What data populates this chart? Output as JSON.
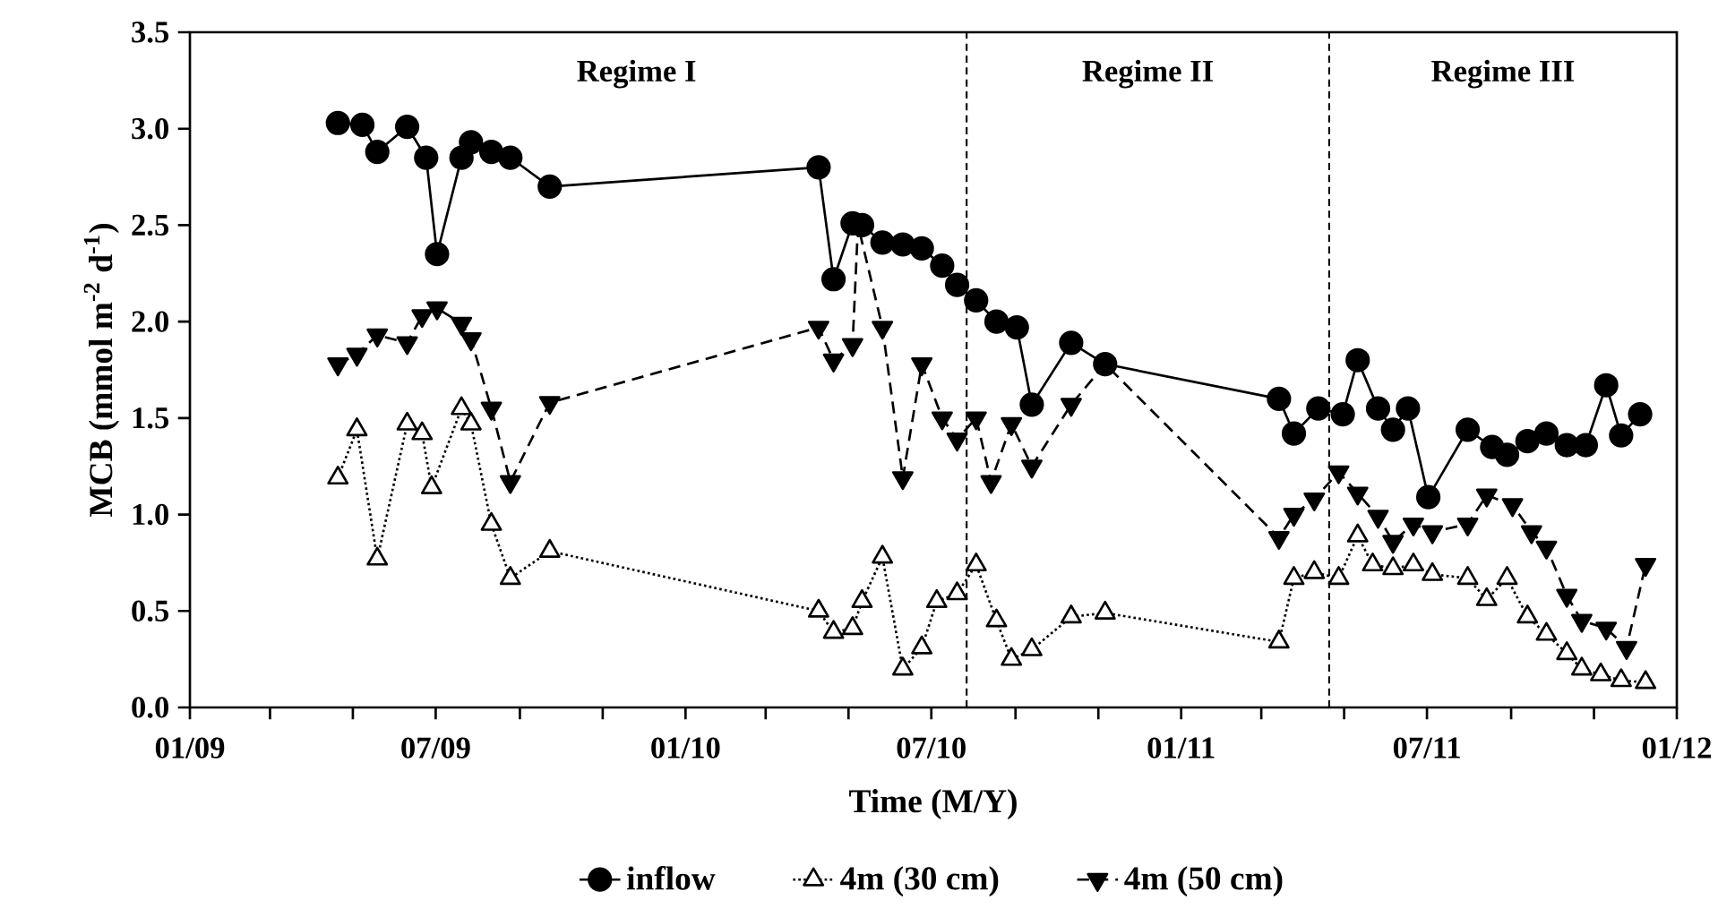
{
  "chart_data": {
    "type": "line",
    "xlabel": "Time (M/Y)",
    "ylabel": "MCB (mmol m$^{-2}$ d$^{-1}$)",
    "xlim": [
      "2009-01-01",
      "2012-01-01"
    ],
    "ylim": [
      0,
      3.5
    ],
    "xticks": [
      {
        "value": "2009-01-01",
        "label": "01/09"
      },
      {
        "value": "2009-03-01",
        "label": null
      },
      {
        "value": "2009-05-01",
        "label": null
      },
      {
        "value": "2009-07-01",
        "label": "07/09"
      },
      {
        "value": "2009-09-01",
        "label": null
      },
      {
        "value": "2009-11-01",
        "label": null
      },
      {
        "value": "2010-01-01",
        "label": "01/10"
      },
      {
        "value": "2010-03-01",
        "label": null
      },
      {
        "value": "2010-05-01",
        "label": null
      },
      {
        "value": "2010-07-01",
        "label": "07/10"
      },
      {
        "value": "2010-09-01",
        "label": null
      },
      {
        "value": "2010-11-01",
        "label": null
      },
      {
        "value": "2011-01-01",
        "label": "01/11"
      },
      {
        "value": "2011-03-01",
        "label": null
      },
      {
        "value": "2011-05-01",
        "label": null
      },
      {
        "value": "2011-07-01",
        "label": "07/11"
      },
      {
        "value": "2011-09-01",
        "label": null
      },
      {
        "value": "2011-11-01",
        "label": null
      },
      {
        "value": "2012-01-01",
        "label": "01/12"
      }
    ],
    "yticks": [
      {
        "value": 0,
        "label": "0.0"
      },
      {
        "value": 0.5,
        "label": "0.5"
      },
      {
        "value": 1,
        "label": "1.0"
      },
      {
        "value": 1.5,
        "label": "1.5"
      },
      {
        "value": 2,
        "label": "2.0"
      },
      {
        "value": 2.5,
        "label": "2.5"
      },
      {
        "value": 3,
        "label": "3.0"
      },
      {
        "value": 3.5,
        "label": "3.5"
      }
    ],
    "legend": "bottom",
    "series": [
      {
        "name": "inflow",
        "color": "#000000",
        "marker": "circle",
        "line_style": "solid",
        "x": [
          "2009-04-20",
          "2009-05-08",
          "2009-05-19",
          "2009-06-10",
          "2009-06-24",
          "2009-07-02",
          "2009-07-20",
          "2009-07-27",
          "2009-08-11",
          "2009-08-25",
          "2009-09-23",
          "2010-04-09",
          "2010-04-20",
          "2010-05-04",
          "2010-05-11",
          "2010-05-26",
          "2010-06-10",
          "2010-06-24",
          "2010-07-09",
          "2010-07-20",
          "2010-08-03",
          "2010-08-18",
          "2010-09-02",
          "2010-09-13",
          "2010-10-12",
          "2010-11-06",
          "2011-03-14",
          "2011-03-25",
          "2011-04-12",
          "2011-04-30",
          "2011-05-11",
          "2011-05-26",
          "2011-06-06",
          "2011-06-17",
          "2011-07-02",
          "2011-07-31",
          "2011-08-18",
          "2011-08-29",
          "2011-09-13",
          "2011-09-27",
          "2011-10-12",
          "2011-10-26",
          "2011-11-10",
          "2011-11-21",
          "2011-12-05"
        ],
        "values": [
          3.03,
          3.02,
          2.88,
          3.01,
          2.85,
          2.35,
          2.85,
          2.93,
          2.88,
          2.85,
          2.7,
          2.8,
          2.22,
          2.51,
          2.5,
          2.41,
          2.4,
          2.38,
          2.29,
          2.19,
          2.11,
          2.0,
          1.97,
          1.57,
          1.89,
          1.78,
          1.6,
          1.42,
          1.55,
          1.52,
          1.8,
          1.55,
          1.44,
          1.55,
          1.09,
          1.44,
          1.35,
          1.31,
          1.38,
          1.42,
          1.36,
          1.36,
          1.67,
          1.41,
          1.52
        ]
      },
      {
        "name": "4m (30 cm)",
        "color": "#000000",
        "marker": "triangle",
        "line_style": "dotted",
        "x": [
          "2009-04-20",
          "2009-05-04",
          "2009-05-19",
          "2009-06-10",
          "2009-06-21",
          "2009-06-28",
          "2009-07-20",
          "2009-07-27",
          "2009-08-11",
          "2009-08-25",
          "2009-09-23",
          "2010-04-09",
          "2010-04-20",
          "2010-05-04",
          "2010-05-11",
          "2010-05-26",
          "2010-06-10",
          "2010-06-24",
          "2010-07-05",
          "2010-07-20",
          "2010-08-03",
          "2010-08-18",
          "2010-08-29",
          "2010-09-13",
          "2010-10-12",
          "2010-11-06",
          "2011-03-14",
          "2011-03-25",
          "2011-04-09",
          "2011-04-27",
          "2011-05-11",
          "2011-05-22",
          "2011-06-06",
          "2011-06-21",
          "2011-07-05",
          "2011-07-31",
          "2011-08-14",
          "2011-08-29",
          "2011-09-13",
          "2011-09-27",
          "2011-10-12",
          "2011-10-23",
          "2011-11-06",
          "2011-11-21",
          "2011-12-09"
        ],
        "values": [
          1.19,
          1.44,
          0.77,
          1.47,
          1.42,
          1.14,
          1.55,
          1.47,
          0.95,
          0.67,
          0.81,
          0.5,
          0.39,
          0.41,
          0.55,
          0.78,
          0.2,
          0.31,
          0.55,
          0.59,
          0.74,
          0.45,
          0.25,
          0.3,
          0.47,
          0.49,
          0.34,
          0.67,
          0.7,
          0.67,
          0.89,
          0.74,
          0.72,
          0.74,
          0.69,
          0.67,
          0.56,
          0.67,
          0.47,
          0.38,
          0.28,
          0.2,
          0.17,
          0.14,
          0.13
        ]
      },
      {
        "name": "4m (50 cm)",
        "color": "#000000",
        "marker": "triangle-down",
        "line_style": "dashed",
        "x": [
          "2009-04-20",
          "2009-05-04",
          "2009-05-19",
          "2009-06-10",
          "2009-06-21",
          "2009-07-02",
          "2009-07-20",
          "2009-07-27",
          "2009-08-11",
          "2009-08-25",
          "2009-09-23",
          "2010-04-09",
          "2010-04-20",
          "2010-05-04",
          "2010-05-08",
          "2010-05-26",
          "2010-06-10",
          "2010-06-24",
          "2010-07-09",
          "2010-07-20",
          "2010-08-03",
          "2010-08-14",
          "2010-08-29",
          "2010-09-13",
          "2010-10-12",
          "2010-11-06",
          "2011-03-14",
          "2011-03-25",
          "2011-04-09",
          "2011-04-27",
          "2011-05-11",
          "2011-05-26",
          "2011-06-06",
          "2011-06-21",
          "2011-07-05",
          "2011-07-31",
          "2011-08-14",
          "2011-09-02",
          "2011-09-16",
          "2011-09-27",
          "2011-10-12",
          "2011-10-23",
          "2011-11-10",
          "2011-11-25",
          "2011-12-09"
        ],
        "values": [
          1.78,
          1.83,
          1.93,
          1.89,
          2.03,
          2.07,
          1.99,
          1.91,
          1.55,
          1.17,
          1.58,
          1.97,
          1.8,
          1.88,
          2.5,
          1.97,
          1.19,
          1.78,
          1.5,
          1.39,
          1.5,
          1.17,
          1.47,
          1.25,
          1.57,
          1.78,
          0.88,
          1.0,
          1.08,
          1.22,
          1.11,
          0.99,
          0.86,
          0.95,
          0.91,
          0.95,
          1.1,
          1.05,
          0.91,
          0.83,
          0.58,
          0.45,
          0.41,
          0.31,
          0.74
        ]
      }
    ],
    "ref_lines": [
      {
        "axis": "x",
        "value": "2010-07-27",
        "line_style": "dashed"
      },
      {
        "axis": "x",
        "value": "2011-04-20",
        "line_style": "dashed"
      }
    ],
    "annotations": [
      "Regime I",
      "Regime II",
      "Regime III"
    ]
  }
}
